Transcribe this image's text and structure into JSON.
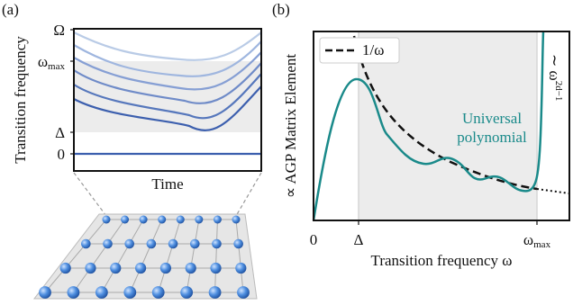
{
  "panel_a": {
    "label": "(a)",
    "y_axis_label": "Transition frequency",
    "x_axis_label": "Time",
    "y_ticks": [
      {
        "main": "Ω"
      },
      {
        "main": "ω",
        "sub": "max"
      },
      {
        "main": "Δ"
      },
      {
        "main": "0"
      }
    ]
  },
  "panel_b": {
    "label": "(b)",
    "legend": "1/ω",
    "y_axis_label": "∝ AGP Matrix Element",
    "x_axis_label": "Transition frequency ω",
    "annotation": [
      "Universal",
      "polynomial"
    ],
    "scaling": {
      "main": "∼ ω",
      "sup": "2d−1"
    },
    "x_ticks": [
      {
        "main": "0"
      },
      {
        "main": "Δ"
      },
      {
        "main": "ω",
        "sub": "max"
      }
    ]
  }
}
